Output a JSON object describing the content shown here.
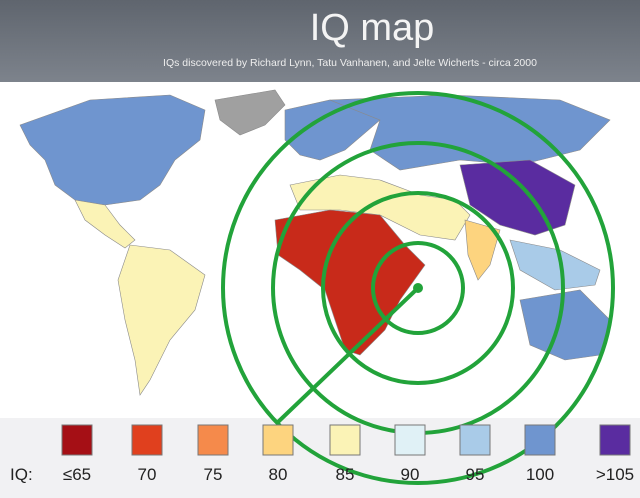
{
  "header": {
    "title": "IQ map",
    "subtitle": "IQs discovered by Richard Lynn, Tatu Vanhanen, and Jelte Wicherts - circa 2000"
  },
  "legend": {
    "label": "IQ:",
    "items": [
      {
        "label": "≤65",
        "color": "#a50f15"
      },
      {
        "label": "70",
        "color": "#e0401e"
      },
      {
        "label": "75",
        "color": "#f58a4b"
      },
      {
        "label": "80",
        "color": "#fdd47f"
      },
      {
        "label": "85",
        "color": "#fbf3b6"
      },
      {
        "label": "90",
        "color": "#e0f1f6"
      },
      {
        "label": "95",
        "color": "#a9cbe8"
      },
      {
        "label": "100",
        "color": "#6f95cf"
      },
      {
        "label": ">105",
        "color": "#5a2ca0"
      }
    ]
  }
}
